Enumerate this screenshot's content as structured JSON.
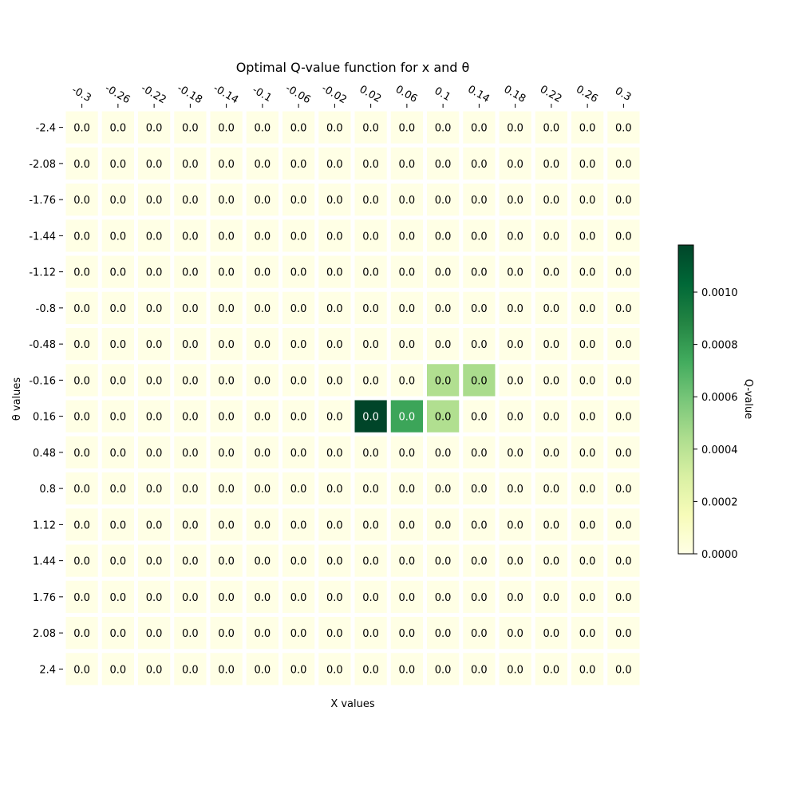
{
  "chart_data": {
    "type": "heatmap",
    "title": "Optimal Q-value function for x and θ",
    "xlabel": "X values",
    "ylabel": "θ values",
    "x_categories": [
      "-0.3",
      "-0.26",
      "-0.22",
      "-0.18",
      "-0.14",
      "-0.1",
      "-0.06",
      "-0.02",
      "0.02",
      "0.06",
      "0.1",
      "0.14",
      "0.18",
      "0.22",
      "0.26",
      "0.3"
    ],
    "y_categories": [
      "-2.4",
      "-2.08",
      "-1.76",
      "-1.44",
      "-1.12",
      "-0.8",
      "-0.48",
      "-0.16",
      "0.16",
      "0.48",
      "0.8",
      "1.12",
      "1.44",
      "1.76",
      "2.08",
      "2.4"
    ],
    "values": [
      [
        0,
        0,
        0,
        0,
        0,
        0,
        0,
        0,
        0,
        0,
        0,
        0,
        0,
        0,
        0,
        0
      ],
      [
        0,
        0,
        0,
        0,
        0,
        0,
        0,
        0,
        0,
        0,
        0,
        0,
        0,
        0,
        0,
        0
      ],
      [
        0,
        0,
        0,
        0,
        0,
        0,
        0,
        0,
        0,
        0,
        0,
        0,
        0,
        0,
        0,
        0
      ],
      [
        0,
        0,
        0,
        0,
        0,
        0,
        0,
        0,
        0,
        0,
        0,
        0,
        0,
        0,
        0,
        0
      ],
      [
        0,
        0,
        0,
        0,
        0,
        0,
        0,
        0,
        0,
        0,
        0,
        0,
        0,
        0,
        0,
        0
      ],
      [
        0,
        0,
        0,
        0,
        0,
        0,
        0,
        0,
        0,
        0,
        0,
        0,
        0,
        0,
        0,
        0
      ],
      [
        0,
        0,
        0,
        0,
        0,
        0,
        0,
        0,
        0,
        0,
        0,
        0,
        0,
        0,
        0,
        0
      ],
      [
        0,
        0,
        0,
        0,
        0,
        0,
        0,
        0,
        0,
        0,
        0.00043,
        0.00045,
        0,
        0,
        0,
        0
      ],
      [
        0,
        0,
        0,
        0,
        0,
        0,
        0,
        0,
        0.00118,
        0.00076,
        0.00043,
        0,
        0,
        0,
        0,
        0
      ],
      [
        0,
        0,
        0,
        0,
        0,
        0,
        0,
        0,
        0,
        0,
        0,
        0,
        0,
        0,
        0,
        0
      ],
      [
        0,
        0,
        0,
        0,
        0,
        0,
        0,
        0,
        0,
        0,
        0,
        0,
        0,
        0,
        0,
        0
      ],
      [
        0,
        0,
        0,
        0,
        0,
        0,
        0,
        0,
        0,
        0,
        0,
        0,
        0,
        0,
        0,
        0
      ],
      [
        0,
        0,
        0,
        0,
        0,
        0,
        0,
        0,
        0,
        0,
        0,
        0,
        0,
        0,
        0,
        0
      ],
      [
        0,
        0,
        0,
        0,
        0,
        0,
        0,
        0,
        0,
        0,
        0,
        0,
        0,
        0,
        0,
        0
      ],
      [
        0,
        0,
        0,
        0,
        0,
        0,
        0,
        0,
        0,
        0,
        0,
        0,
        0,
        0,
        0,
        0
      ],
      [
        0,
        0,
        0,
        0,
        0,
        0,
        0,
        0,
        0,
        0,
        0,
        0,
        0,
        0,
        0,
        0
      ]
    ],
    "cell_labels_text": "0.0",
    "colormap": "YlGn",
    "vmin": 0,
    "vmax": 0.00118,
    "colorbar": {
      "label": "Q-value",
      "ticks": [
        "0.0000",
        "0.0002",
        "0.0004",
        "0.0006",
        "0.0008",
        "0.0010"
      ],
      "tick_values": [
        0,
        0.0002,
        0.0004,
        0.0006,
        0.0008,
        0.001
      ],
      "placement": "right"
    },
    "grid": false
  }
}
